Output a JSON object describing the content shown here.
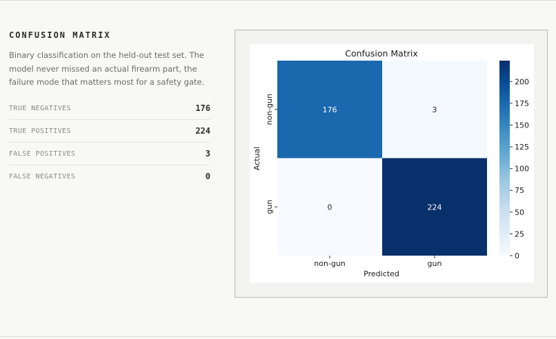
{
  "section": {
    "title": "CONFUSION MATRIX",
    "description": "Binary classification on the held-out test set. The model never missed an actual firearm part, the failure mode that matters most for a safety gate."
  },
  "metrics": [
    {
      "label": "TRUE NEGATIVES",
      "value": "176"
    },
    {
      "label": "TRUE POSITIVES",
      "value": "224"
    },
    {
      "label": "FALSE POSITIVES",
      "value": "3"
    },
    {
      "label": "FALSE NEGATIVES",
      "value": "0"
    }
  ],
  "chart_data": {
    "type": "heatmap",
    "title": "Confusion Matrix",
    "xlabel": "Predicted",
    "ylabel": "Actual",
    "x_categories": [
      "non-gun",
      "gun"
    ],
    "y_categories": [
      "non-gun",
      "gun"
    ],
    "matrix": [
      [
        176,
        3
      ],
      [
        0,
        224
      ]
    ],
    "colormap": "Blues",
    "colorbar": {
      "min": 0,
      "max": 224,
      "ticks": [
        0,
        25,
        50,
        75,
        100,
        125,
        150,
        175,
        200
      ]
    },
    "colors": {
      "low": "#f7fbff",
      "high": "#08306b"
    }
  }
}
